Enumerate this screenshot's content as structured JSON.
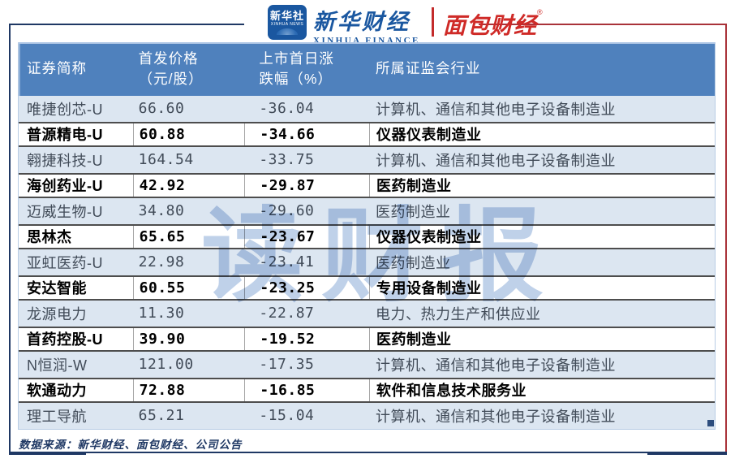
{
  "brand": {
    "xinhua_logo_line1": "新华社",
    "xinhua_logo_line2": "XINHUA NEWS",
    "xinhua_finance_cn": "新华财经",
    "xinhua_finance_en": "XINHUA FINANCE",
    "mianbao_cn": "面包财经",
    "registered_mark": "®"
  },
  "watermark": "读财报",
  "table_header": {
    "col1": "证券简称",
    "col2_line1": "首发价格",
    "col2_line2": "（元/股）",
    "col3_line1": "上市首日涨",
    "col3_line2": "跌幅（%）",
    "col4": "所属证监会行业"
  },
  "chart_data": {
    "type": "table",
    "title": "",
    "columns": [
      "证券简称",
      "首发价格（元/股）",
      "上市首日涨跌幅（%）",
      "所属证监会行业"
    ],
    "rows": [
      {
        "name": "唯捷创芯-U",
        "price": "66.60",
        "change": "-36.04",
        "industry": "计算机、通信和其他电子设备制造业",
        "style": "light"
      },
      {
        "name": "普源精电-U",
        "price": "60.88",
        "change": "-34.66",
        "industry": "仪器仪表制造业",
        "style": "strong"
      },
      {
        "name": "翱捷科技-U",
        "price": "164.54",
        "change": "-33.75",
        "industry": "计算机、通信和其他电子设备制造业",
        "style": "light"
      },
      {
        "name": "海创药业-U",
        "price": "42.92",
        "change": "-29.87",
        "industry": "医药制造业",
        "style": "strong"
      },
      {
        "name": "迈威生物-U",
        "price": "34.80",
        "change": "-29.60",
        "industry": "医药制造业",
        "style": "light"
      },
      {
        "name": "思林杰",
        "price": "65.65",
        "change": "-23.67",
        "industry": "仪器仪表制造业",
        "style": "strong"
      },
      {
        "name": "亚虹医药-U",
        "price": "22.98",
        "change": "-23.41",
        "industry": "医药制造业",
        "style": "light"
      },
      {
        "name": "安达智能",
        "price": "60.55",
        "change": "-23.25",
        "industry": "专用设备制造业",
        "style": "strong"
      },
      {
        "name": "龙源电力",
        "price": "11.30",
        "change": "-22.87",
        "industry": "电力、热力生产和供应业",
        "style": "light"
      },
      {
        "name": "首药控股-U",
        "price": "39.90",
        "change": "-19.52",
        "industry": "医药制造业",
        "style": "strong"
      },
      {
        "name": "N恒润-W",
        "price": "121.00",
        "change": "-17.35",
        "industry": "计算机、通信和其他电子设备制造业",
        "style": "light"
      },
      {
        "name": "软通动力",
        "price": "72.88",
        "change": "-16.85",
        "industry": "软件和信息技术服务业",
        "style": "strong"
      },
      {
        "name": "理工导航",
        "price": "65.21",
        "change": "-15.04",
        "industry": "计算机、通信和其他电子设备制造业",
        "style": "light"
      }
    ]
  },
  "footer": {
    "source": "数据来源：新华财经、面包财经、公司公告"
  },
  "colors": {
    "frame_navy": "#1F3864",
    "frame_red": "#A93239",
    "header_fill": "#4F81BD",
    "header_bevel": "#AEC6E5",
    "light_row": "#DCE6F1",
    "light_row_text": "#414B58",
    "strong_border": "#4D4D4D",
    "cell_divider": "#A6A6A6",
    "table_edge": "#B8CCE4",
    "brand_blue": "#1A57A0",
    "brand_red": "#CF2A27",
    "watermark_color": "#B4C9E6",
    "footer_text": "#1F3864"
  }
}
